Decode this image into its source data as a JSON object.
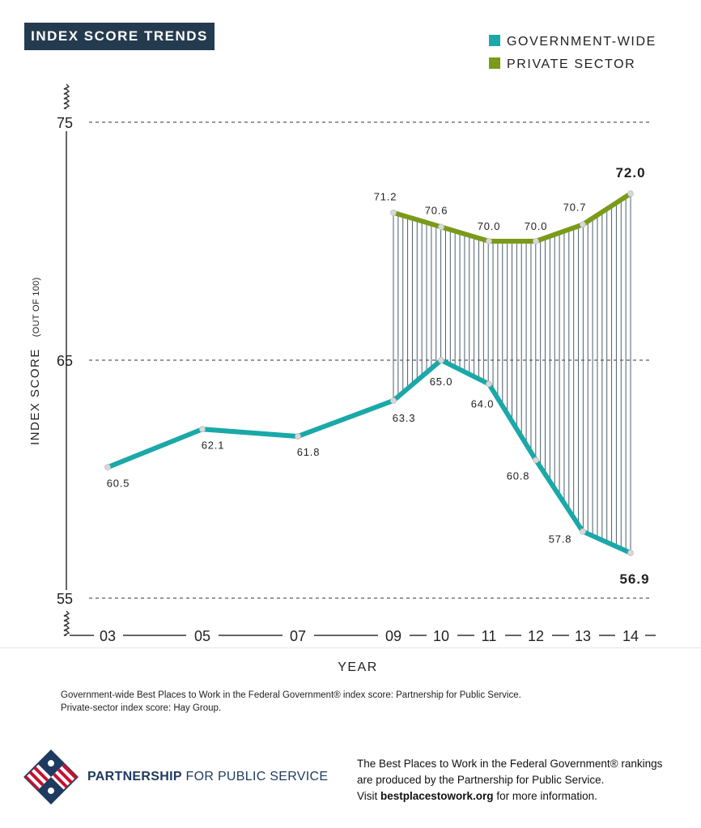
{
  "header": {
    "title": "INDEX SCORE TRENDS"
  },
  "legend": [
    {
      "label": "GOVERNMENT-WIDE",
      "color": "#1aa8a8"
    },
    {
      "label": "PRIVATE SECTOR",
      "color": "#7a9a1a"
    }
  ],
  "chart_data": {
    "type": "line",
    "title": "INDEX SCORE TRENDS",
    "xlabel": "YEAR",
    "ylabel": "INDEX SCORE",
    "ylabel_note": "(OUT OF 100)",
    "yticks": [
      "75",
      "65",
      "55"
    ],
    "ylim": [
      55,
      75
    ],
    "gridlines": true,
    "legend_position": "top-right",
    "categories": [
      "03",
      "05",
      "07",
      "09",
      "10",
      "11",
      "12",
      "13",
      "14"
    ],
    "series": [
      {
        "name": "GOVERNMENT-WIDE",
        "color": "#1aa8a8",
        "labels": [
          "60.5",
          "62.1",
          "61.8",
          "63.3",
          "65.0",
          "64.0",
          "60.8",
          "57.8",
          "56.9"
        ],
        "values": [
          60.5,
          62.1,
          61.8,
          63.3,
          65.0,
          64.0,
          60.8,
          57.8,
          56.9
        ]
      },
      {
        "name": "PRIVATE SECTOR",
        "color": "#7a9a1a",
        "labels": [
          null,
          null,
          null,
          "71.2",
          "70.6",
          "70.0",
          "70.0",
          "70.7",
          "72.0"
        ],
        "values": [
          null,
          null,
          null,
          71.2,
          70.6,
          70.0,
          70.0,
          70.7,
          72.0
        ]
      }
    ],
    "highlighted_labels": [
      "72.0",
      "56.9"
    ]
  },
  "footer": {
    "source_line1": "Government-wide Best Places to Work in the Federal Government® index score: Partnership for Public Service.",
    "source_line2": "Private-sector index score: Hay Group.",
    "org_bold": "PARTNERSHIP",
    "org_rest": " FOR PUBLIC SERVICE",
    "promo_line1": "The Best Places to Work in the Federal Government® rankings",
    "promo_line2": "are produced by the Partnership for Public Service.",
    "promo_visit": "Visit ",
    "promo_url": "bestplacestowork.org",
    "promo_tail": " for more information."
  }
}
